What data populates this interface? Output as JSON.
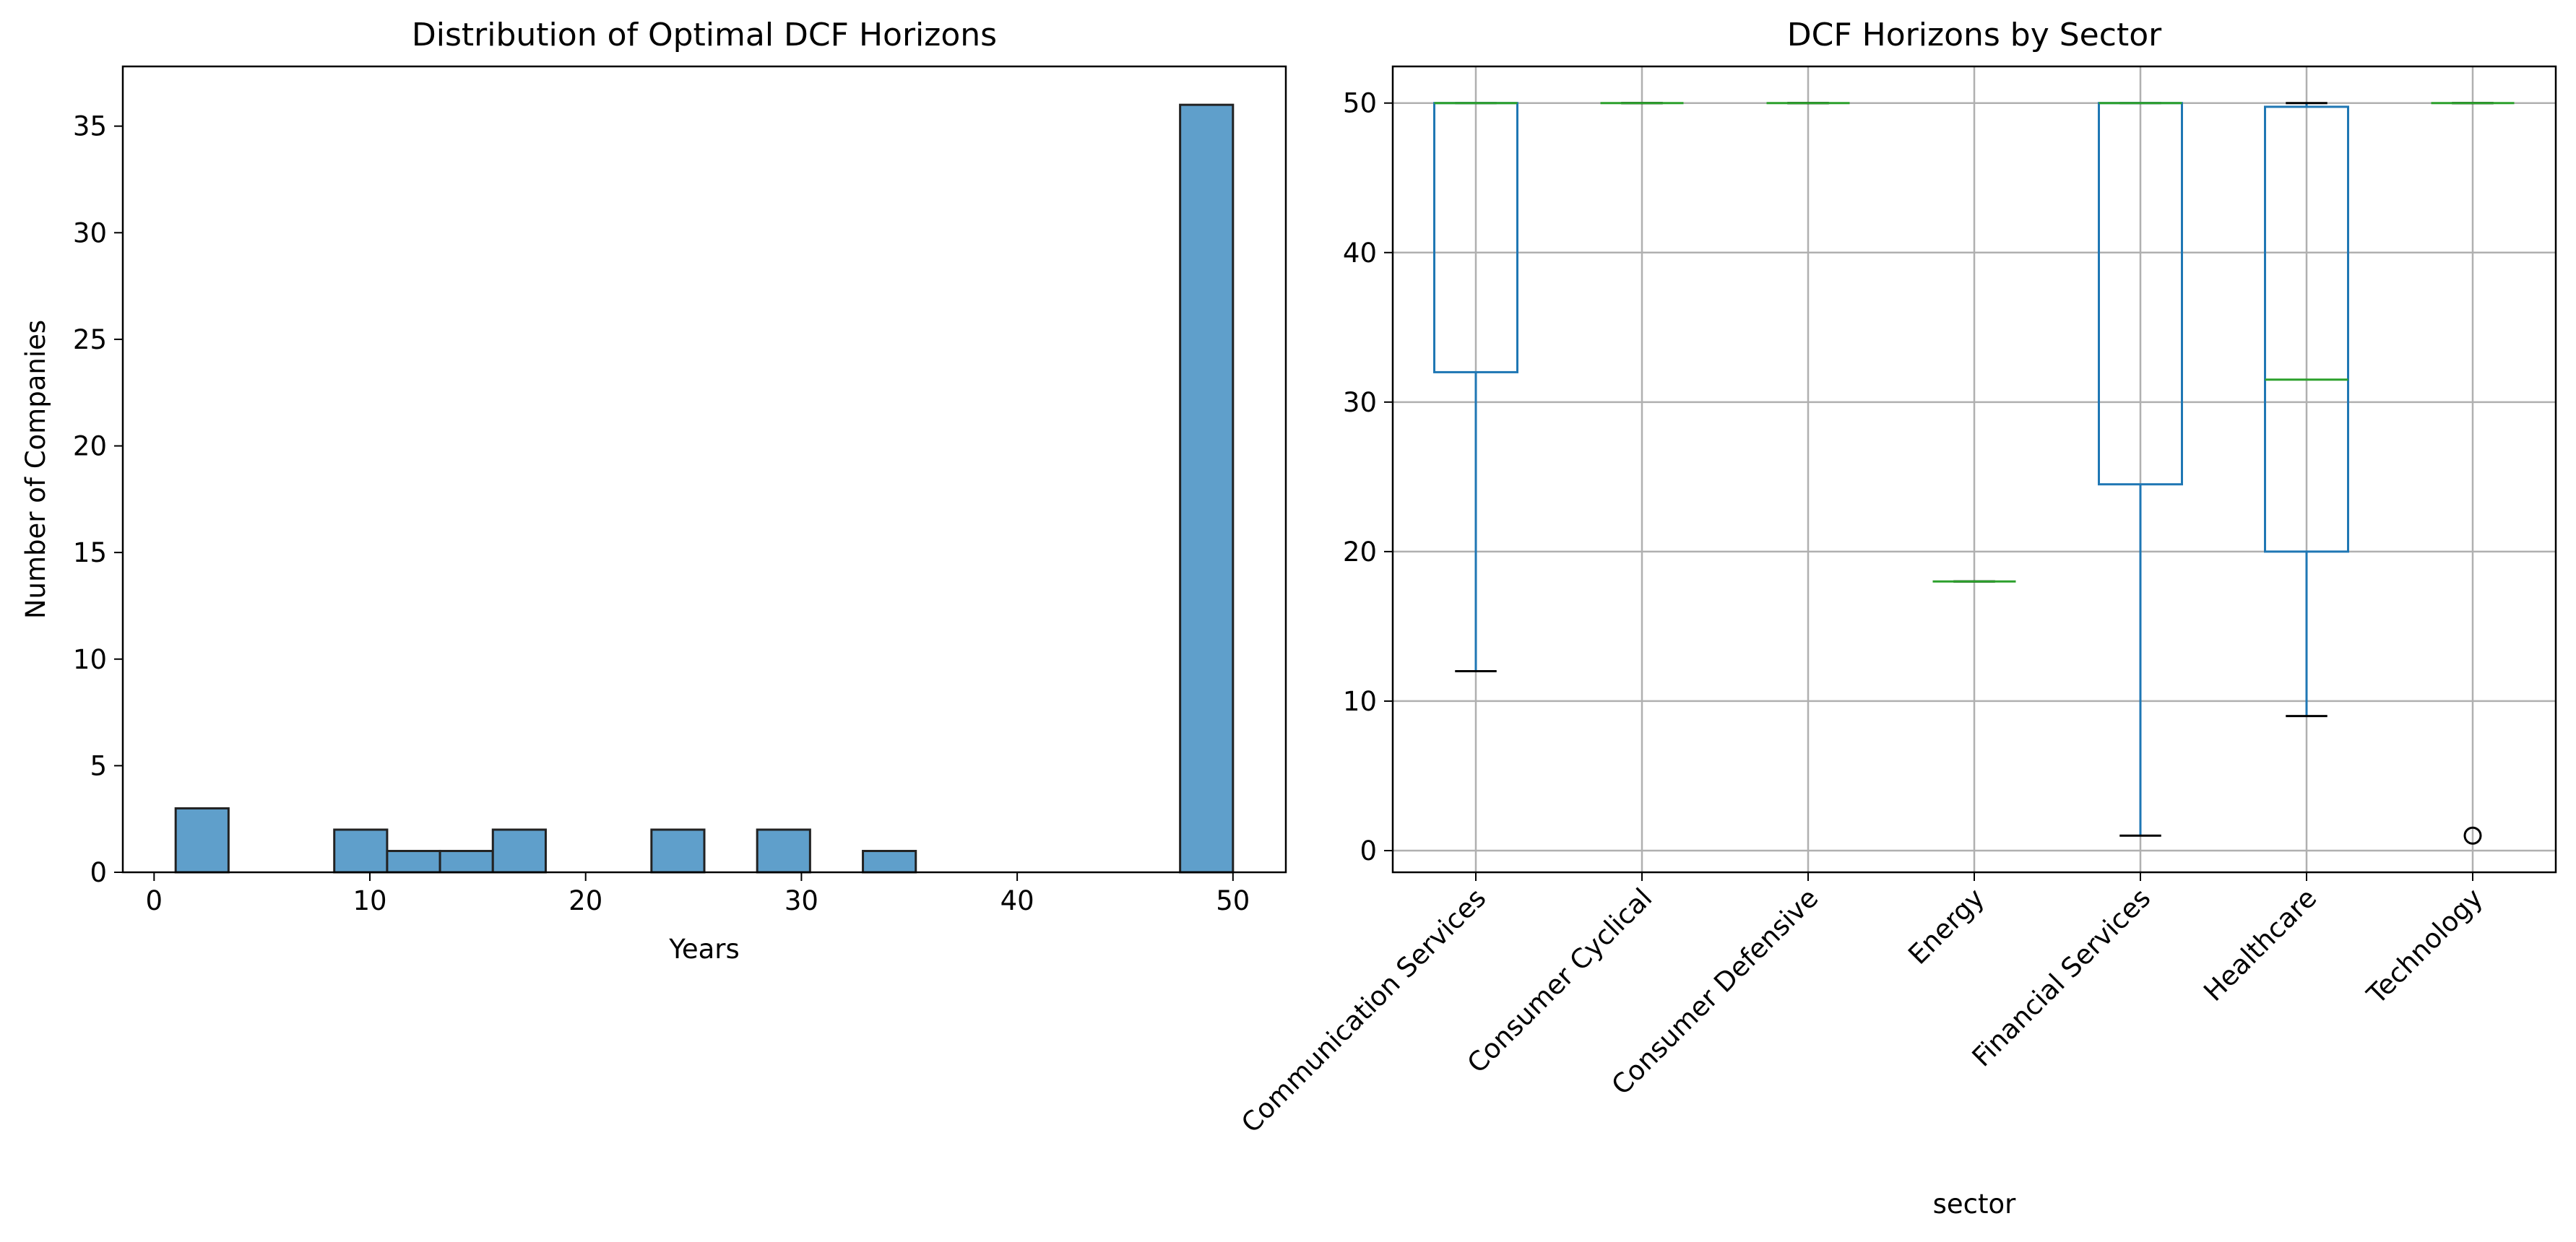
{
  "chart_data": [
    {
      "type": "bar",
      "title": "Distribution of Optimal DCF Horizons",
      "xlabel": "Years",
      "ylabel": "Number of Companies",
      "xlim": [
        -1.45,
        52.45
      ],
      "ylim": [
        0,
        37.8
      ],
      "xticks": [
        0,
        10,
        20,
        30,
        40,
        50
      ],
      "yticks": [
        0,
        5,
        10,
        15,
        20,
        25,
        30,
        35
      ],
      "bin_edges": [
        1,
        3.45,
        5.9,
        8.35,
        10.8,
        13.25,
        15.7,
        18.15,
        20.6,
        23.05,
        25.5,
        27.95,
        30.4,
        32.85,
        35.3,
        37.75,
        40.2,
        42.65,
        45.1,
        47.55,
        50
      ],
      "values": [
        3,
        0,
        0,
        2,
        1,
        1,
        2,
        0,
        0,
        2,
        0,
        2,
        0,
        1,
        0,
        0,
        0,
        0,
        0,
        36
      ],
      "bar_color": "#5f9fcb",
      "grid": false
    },
    {
      "type": "box",
      "title": "DCF Horizons by Sector",
      "xlabel": "sector",
      "ylabel": "",
      "ylim": [
        -1.45,
        52.45
      ],
      "yticks": [
        0,
        10,
        20,
        30,
        40,
        50
      ],
      "grid": true,
      "categories": [
        "Communication Services",
        "Consumer Cyclical",
        "Consumer Defensive",
        "Energy",
        "Financial Services",
        "Healthcare",
        "Technology"
      ],
      "boxes": [
        {
          "whisker_low": 12,
          "q1": 32,
          "median": 50,
          "q3": 50,
          "whisker_high": 50,
          "outliers": []
        },
        {
          "whisker_low": 50,
          "q1": 50,
          "median": 50,
          "q3": 50,
          "whisker_high": 50,
          "outliers": []
        },
        {
          "whisker_low": 50,
          "q1": 50,
          "median": 50,
          "q3": 50,
          "whisker_high": 50,
          "outliers": []
        },
        {
          "whisker_low": 18,
          "q1": 18,
          "median": 18,
          "q3": 18,
          "whisker_high": 18,
          "outliers": []
        },
        {
          "whisker_low": 1,
          "q1": 24.5,
          "median": 50,
          "q3": 50,
          "whisker_high": 50,
          "outliers": []
        },
        {
          "whisker_low": 9,
          "q1": 20,
          "median": 31.5,
          "q3": 49.75,
          "whisker_high": 50,
          "outliers": []
        },
        {
          "whisker_low": 50,
          "q1": 50,
          "median": 50,
          "q3": 50,
          "whisker_high": 50,
          "outliers": [
            1
          ]
        }
      ],
      "box_color": "#1f77b4",
      "median_color": "#2ca02c"
    }
  ]
}
